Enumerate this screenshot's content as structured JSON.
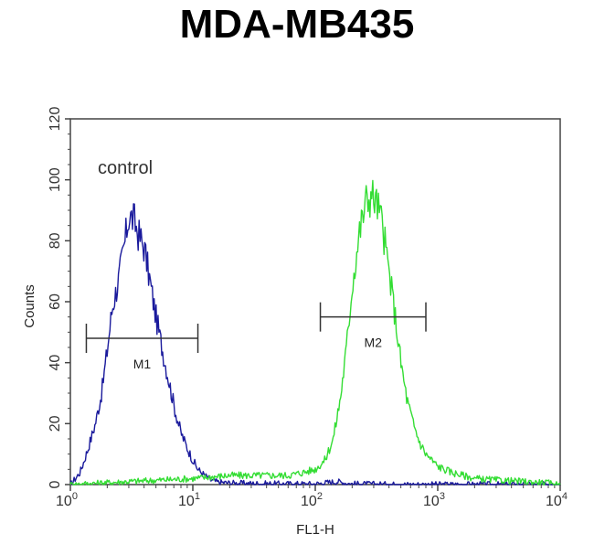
{
  "chart_data": {
    "type": "line",
    "title": "MDA-MB435",
    "xlabel": "FL1-H",
    "ylabel": "Counts",
    "x_scale": "log",
    "xlim": [
      1,
      10000
    ],
    "ylim": [
      0,
      120
    ],
    "x_ticks": [
      {
        "value": 1,
        "base": "10",
        "exp": "0"
      },
      {
        "value": 10,
        "base": "10",
        "exp": "1"
      },
      {
        "value": 100,
        "base": "10",
        "exp": "2"
      },
      {
        "value": 1000,
        "base": "10",
        "exp": "3"
      },
      {
        "value": 10000,
        "base": "10",
        "exp": "4"
      }
    ],
    "y_ticks": [
      "0",
      "20",
      "40",
      "60",
      "80",
      "100",
      "120"
    ],
    "annotation": "control",
    "colors": {
      "control": "#1a1a9c",
      "sample": "#33dd33",
      "axis": "#444444",
      "marker": "#333333"
    },
    "series": [
      {
        "color": "#1a1a9c",
        "x": [
          1.0,
          1.1,
          1.2,
          1.3,
          1.4,
          1.6,
          1.8,
          2.0,
          2.2,
          2.5,
          2.8,
          3.0,
          3.3,
          3.6,
          4.0,
          4.5,
          5.0,
          5.6,
          6.3,
          7.1,
          8.0,
          9.0,
          10.0,
          11.0,
          12.5,
          14,
          16,
          20,
          30,
          50,
          100,
          150,
          200,
          500,
          1000,
          10000
        ],
        "y": [
          0,
          2,
          4,
          8,
          12,
          20,
          30,
          44,
          58,
          68,
          80,
          88,
          87,
          82,
          78,
          66,
          55,
          45,
          35,
          25,
          17,
          12,
          8,
          5,
          3,
          1.5,
          0.8,
          0.5,
          0.3,
          0.2,
          0.2,
          1,
          0.2,
          0,
          0,
          0
        ]
      },
      {
        "color": "#33dd33",
        "x": [
          1.0,
          3,
          10,
          20,
          40,
          60,
          80,
          100,
          120,
          140,
          160,
          180,
          200,
          230,
          260,
          290,
          320,
          350,
          400,
          450,
          500,
          560,
          630,
          710,
          800,
          1000,
          1300,
          2000,
          3000,
          5000,
          8000,
          10000
        ],
        "y": [
          0,
          1,
          2,
          3,
          3,
          3,
          4,
          5,
          8,
          15,
          28,
          45,
          65,
          83,
          93,
          95,
          92,
          86,
          70,
          55,
          40,
          28,
          20,
          14,
          10,
          6,
          4,
          2,
          1.5,
          1,
          0.5,
          0
        ]
      }
    ],
    "markers": [
      {
        "label": "M1",
        "x_start": 1.35,
        "x_end": 11,
        "y": 48
      },
      {
        "label": "M2",
        "x_start": 110,
        "x_end": 800,
        "y": 55
      }
    ]
  }
}
